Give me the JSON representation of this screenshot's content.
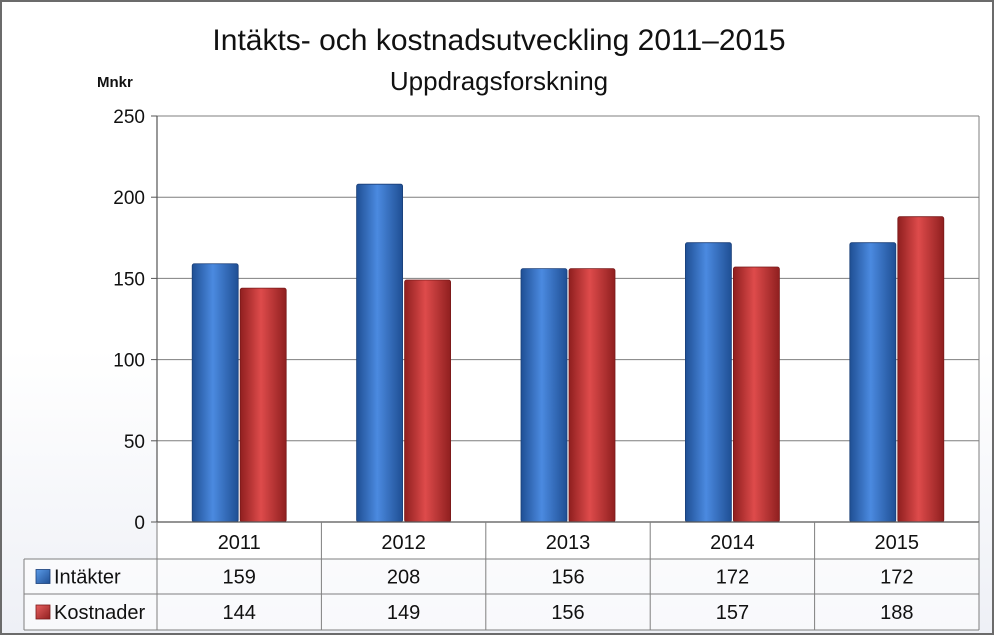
{
  "chart_data": {
    "type": "bar",
    "title": "Intäkts- och kostnadsutveckling 2011–2015",
    "subtitle": "Uppdragsforskning",
    "ylabel": "Mnkr",
    "categories": [
      "2011",
      "2012",
      "2013",
      "2014",
      "2015"
    ],
    "ylim": [
      0,
      250
    ],
    "yticks": [
      0,
      50,
      100,
      150,
      200,
      250
    ],
    "grid": true,
    "legend": "data-table",
    "series": [
      {
        "name": "Intäkter",
        "color": "#3a78d0",
        "values": [
          159,
          208,
          156,
          172,
          172
        ]
      },
      {
        "name": "Kostnader",
        "color": "#c93a3a",
        "values": [
          144,
          149,
          156,
          157,
          188
        ]
      }
    ],
    "table": [
      {
        "label": "Intäkter",
        "values": [
          "159",
          "208",
          "156",
          "172",
          "172"
        ]
      },
      {
        "label": "Kostnader",
        "values": [
          "144",
          "149",
          "156",
          "157",
          "188"
        ]
      }
    ]
  }
}
